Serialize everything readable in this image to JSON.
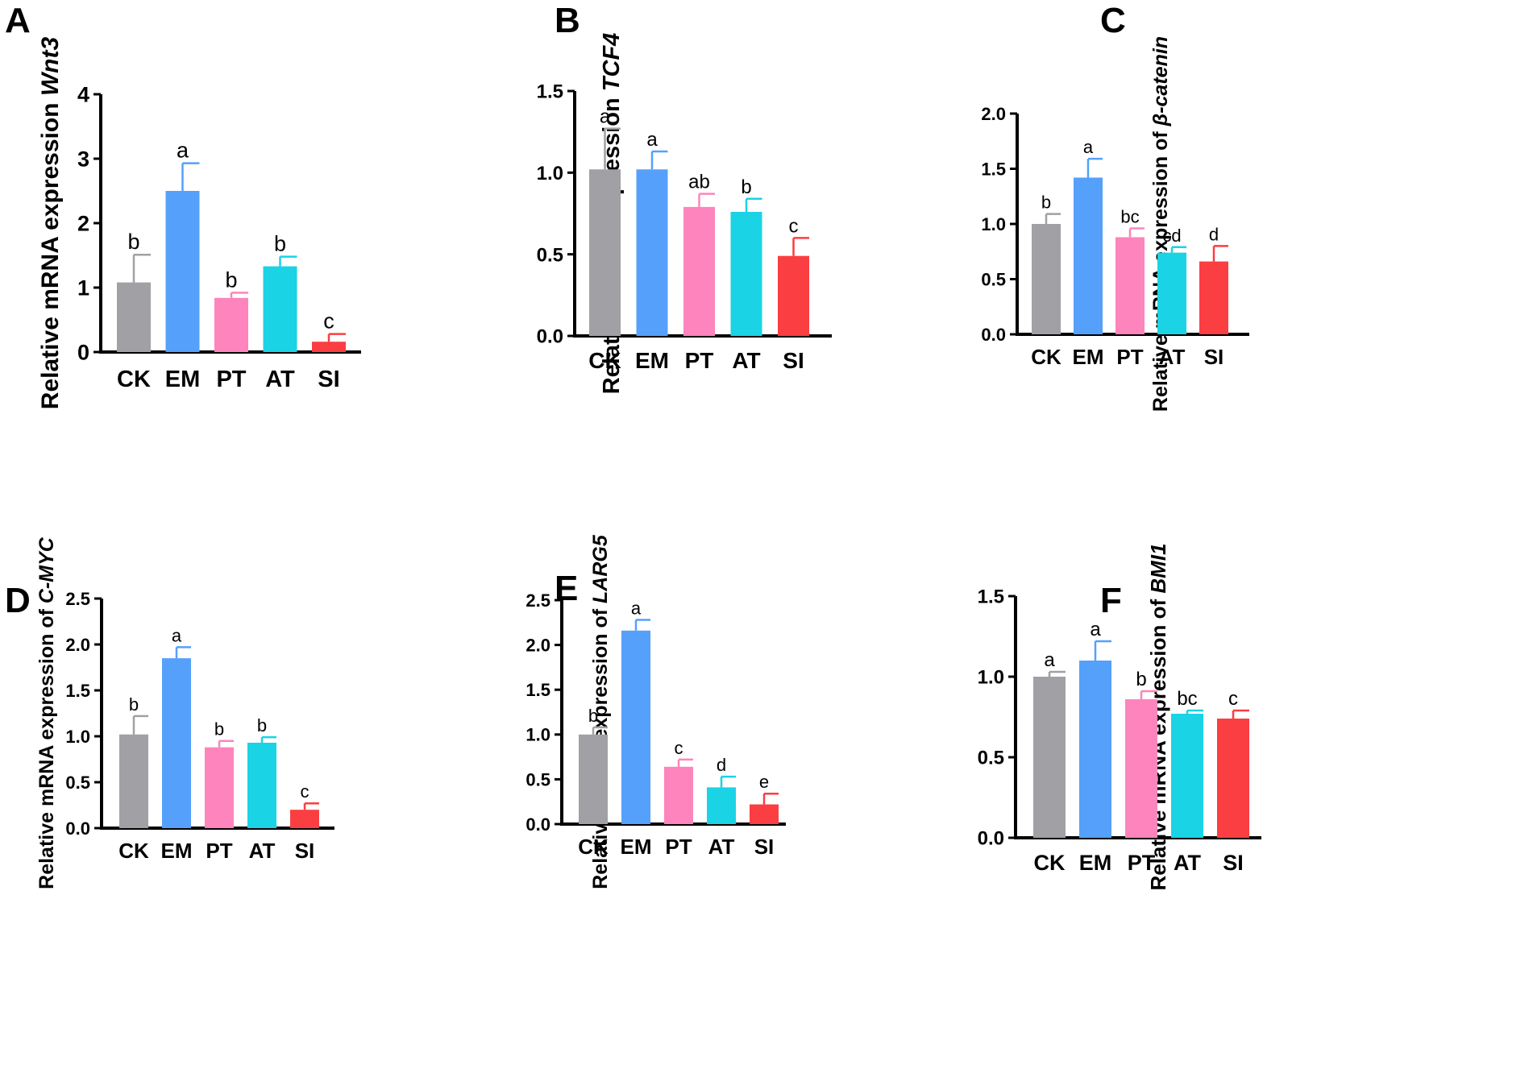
{
  "colors": {
    "CK": "#a0a0a5",
    "EM": "#55a0fb",
    "PT": "#fd84bc",
    "AT": "#1ad3e5",
    "SI": "#fa3e42",
    "axis": "#000000"
  },
  "chart_data": [
    {
      "panel": "A",
      "type": "bar",
      "ylabel_prefix": "Relative mRNA expression ",
      "ylabel_gene": "Wnt3",
      "categories": [
        "CK",
        "EM",
        "PT",
        "AT",
        "SI"
      ],
      "values": [
        1.08,
        2.5,
        0.84,
        1.33,
        0.16
      ],
      "errors": [
        0.43,
        0.43,
        0.08,
        0.15,
        0.12
      ],
      "significance": [
        "b",
        "a",
        "b",
        "b",
        "c"
      ],
      "ylim": [
        0,
        4
      ],
      "yticks": [
        "0",
        "1",
        "2",
        "3",
        "4"
      ],
      "ytick_values": [
        0,
        1,
        2,
        3,
        4
      ]
    },
    {
      "panel": "B",
      "type": "bar",
      "ylabel_prefix": "Relative mRNA expression ",
      "ylabel_gene": "TCF4",
      "categories": [
        "CK",
        "EM",
        "PT",
        "AT",
        "SI"
      ],
      "values": [
        1.02,
        1.02,
        0.79,
        0.76,
        0.49
      ],
      "errors": [
        0.25,
        0.11,
        0.08,
        0.08,
        0.11
      ],
      "significance": [
        "a",
        "a",
        "ab",
        "b",
        "c"
      ],
      "ylim": [
        0,
        1.5
      ],
      "yticks": [
        "0.0",
        "0.5",
        "1.0",
        "1.5"
      ],
      "ytick_values": [
        0,
        0.5,
        1.0,
        1.5
      ]
    },
    {
      "panel": "C",
      "type": "bar",
      "ylabel_prefix": "Relative mRNA expression of ",
      "ylabel_gene": "β-catenin",
      "categories": [
        "CK",
        "EM",
        "PT",
        "AT",
        "SI"
      ],
      "values": [
        1.0,
        1.42,
        0.88,
        0.74,
        0.66
      ],
      "errors": [
        0.09,
        0.17,
        0.08,
        0.05,
        0.14
      ],
      "significance": [
        "b",
        "a",
        "bc",
        "cd",
        "d"
      ],
      "ylim": [
        0,
        2.0
      ],
      "yticks": [
        "0.0",
        "0.5",
        "1.0",
        "1.5",
        "2.0"
      ],
      "ytick_values": [
        0,
        0.5,
        1.0,
        1.5,
        2.0
      ]
    },
    {
      "panel": "D",
      "type": "bar",
      "ylabel_prefix": "Relative mRNA expression of ",
      "ylabel_gene": "C-MYC",
      "categories": [
        "CK",
        "EM",
        "PT",
        "AT",
        "SI"
      ],
      "values": [
        1.02,
        1.85,
        0.88,
        0.93,
        0.2
      ],
      "errors": [
        0.2,
        0.12,
        0.07,
        0.06,
        0.07
      ],
      "significance": [
        "b",
        "a",
        "b",
        "b",
        "c"
      ],
      "ylim": [
        0,
        2.5
      ],
      "yticks": [
        "0.0",
        "0.5",
        "1.0",
        "1.5",
        "2.0",
        "2.5"
      ],
      "ytick_values": [
        0,
        0.5,
        1.0,
        1.5,
        2.0,
        2.5
      ]
    },
    {
      "panel": "E",
      "type": "bar",
      "ylabel_prefix": "Relative mRNA expression of ",
      "ylabel_gene": "LARG5",
      "categories": [
        "CK",
        "EM",
        "PT",
        "AT",
        "SI"
      ],
      "values": [
        1.0,
        2.16,
        0.64,
        0.41,
        0.22
      ],
      "errors": [
        0.08,
        0.12,
        0.08,
        0.12,
        0.12
      ],
      "significance": [
        "b",
        "a",
        "c",
        "d",
        "e"
      ],
      "ylim": [
        0,
        2.5
      ],
      "yticks": [
        "0.0",
        "0.5",
        "1.0",
        "1.5",
        "2.0",
        "2.5"
      ],
      "ytick_values": [
        0,
        0.5,
        1.0,
        1.5,
        2.0,
        2.5
      ]
    },
    {
      "panel": "F",
      "type": "bar",
      "ylabel_prefix": "Relative mRNA expression of ",
      "ylabel_gene": "BMI1",
      "categories": [
        "CK",
        "EM",
        "PT",
        "AT",
        "SI"
      ],
      "values": [
        1.0,
        1.1,
        0.86,
        0.77,
        0.74
      ],
      "errors": [
        0.03,
        0.12,
        0.05,
        0.02,
        0.05
      ],
      "significance": [
        "a",
        "a",
        "b",
        "bc",
        "c"
      ],
      "ylim": [
        0,
        1.5
      ],
      "yticks": [
        "0.0",
        "0.5",
        "1.0",
        "1.5"
      ],
      "ytick_values": [
        0,
        0.5,
        1.0,
        1.5
      ]
    }
  ]
}
